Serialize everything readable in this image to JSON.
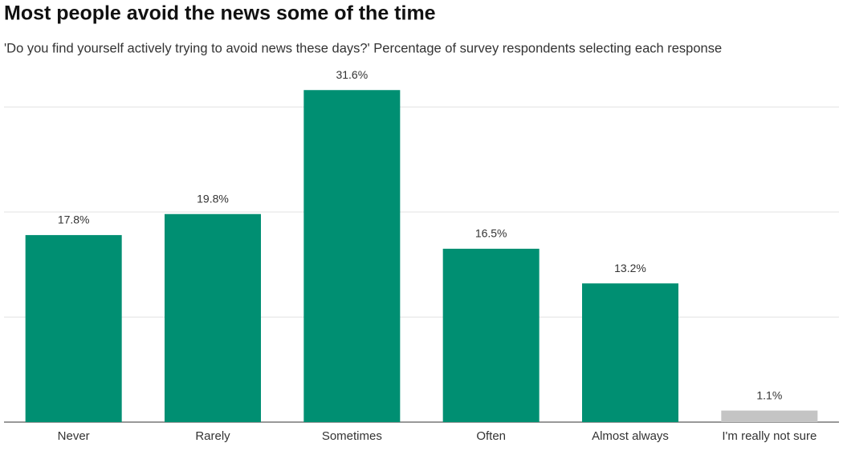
{
  "chart_data": {
    "type": "bar",
    "title": "Most people avoid the news some of the time",
    "subtitle": "'Do you find yourself actively trying to avoid news these days?' Percentage of survey respondents selecting each response",
    "categories": [
      "Never",
      "Rarely",
      "Sometimes",
      "Often",
      "Almost always",
      "I'm really not sure"
    ],
    "values": [
      17.8,
      19.8,
      31.6,
      16.5,
      13.2,
      1.1
    ],
    "value_labels": [
      "17.8%",
      "19.8%",
      "31.6%",
      "16.5%",
      "13.2%",
      "1.1%"
    ],
    "colors": [
      "#008f72",
      "#008f72",
      "#008f72",
      "#008f72",
      "#008f72",
      "#c4c4c4"
    ],
    "ylim": [
      0,
      32
    ],
    "yticks": [
      0,
      10,
      20,
      30
    ],
    "grid": true
  }
}
